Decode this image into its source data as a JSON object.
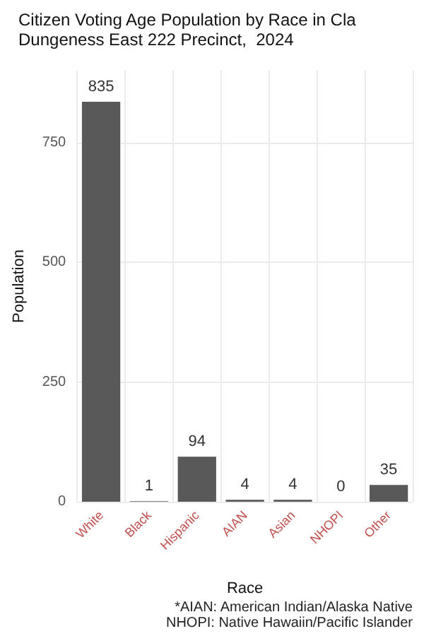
{
  "chart_data": {
    "type": "bar",
    "title": "Citizen Voting Age Population by Race in Cla\nDungeness East 222 Precinct,  2024",
    "xlabel": "Race",
    "ylabel": "Population",
    "categories": [
      "White",
      "Black",
      "Hispanic",
      "AIAN",
      "Asian",
      "NHOPI",
      "Other"
    ],
    "values": [
      835,
      1,
      94,
      4,
      4,
      0,
      35
    ],
    "color": "#595959",
    "data_labels": true,
    "ylim": [
      0,
      900
    ],
    "yticks": [
      0,
      250,
      500,
      750
    ],
    "grid": true,
    "annotations": [
      "*AIAN: American Indian/Alaska Native",
      "NHOPI: Native Hawaiin/Pacific Islander"
    ]
  }
}
